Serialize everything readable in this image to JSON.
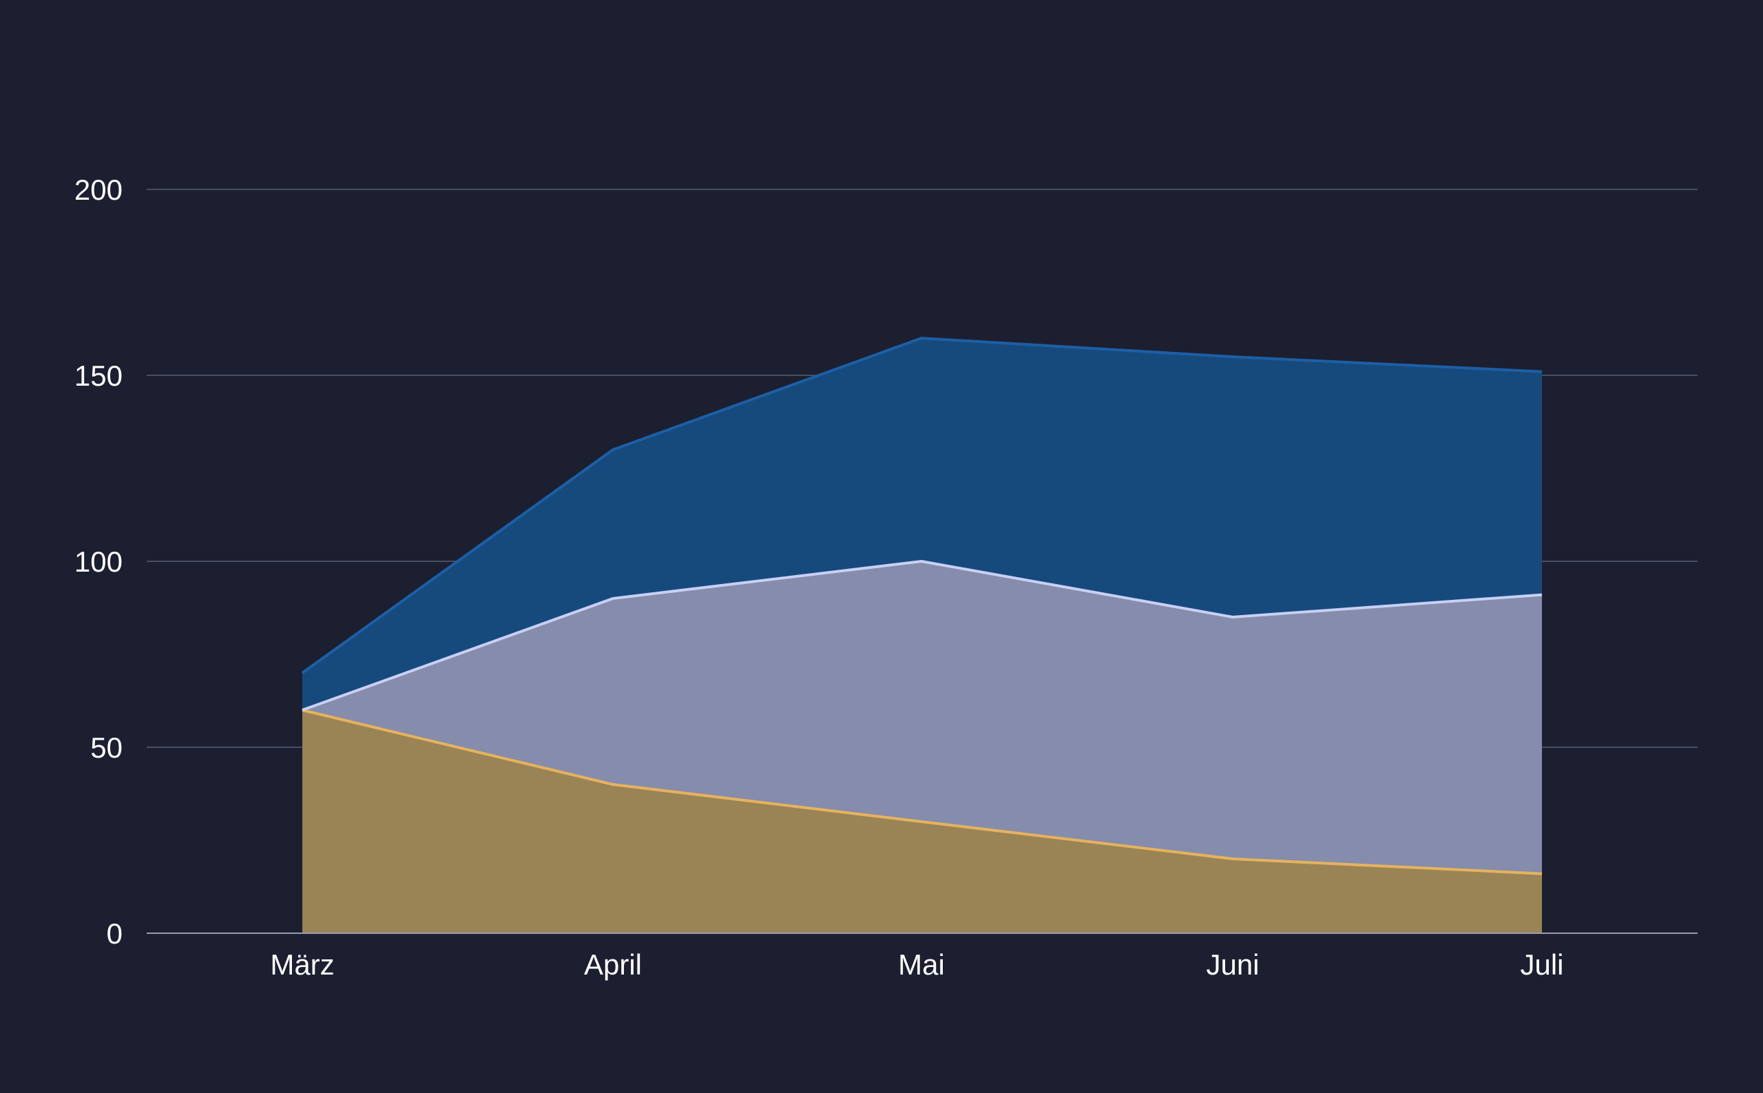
{
  "chart_data": {
    "type": "area",
    "stacked": true,
    "categories": [
      "März",
      "April",
      "Mai",
      "Juni",
      "Juli"
    ],
    "series": [
      {
        "values": [
          60,
          40,
          30,
          20,
          16
        ],
        "fill": "#9a8455",
        "line": "#e6b25e"
      },
      {
        "values": [
          0,
          50,
          70,
          65,
          75
        ],
        "fill": "#858cac",
        "line": "#c9cff5"
      },
      {
        "values": [
          10,
          40,
          60,
          70,
          60
        ],
        "fill": "#164a7d",
        "line": "#1d5fa6"
      }
    ],
    "ylim": [
      0,
      200
    ],
    "yticks": [
      0,
      50,
      100,
      150,
      200
    ],
    "grid": true,
    "title": "",
    "xlabel": "",
    "ylabel": "",
    "background": "#1c1f30"
  }
}
